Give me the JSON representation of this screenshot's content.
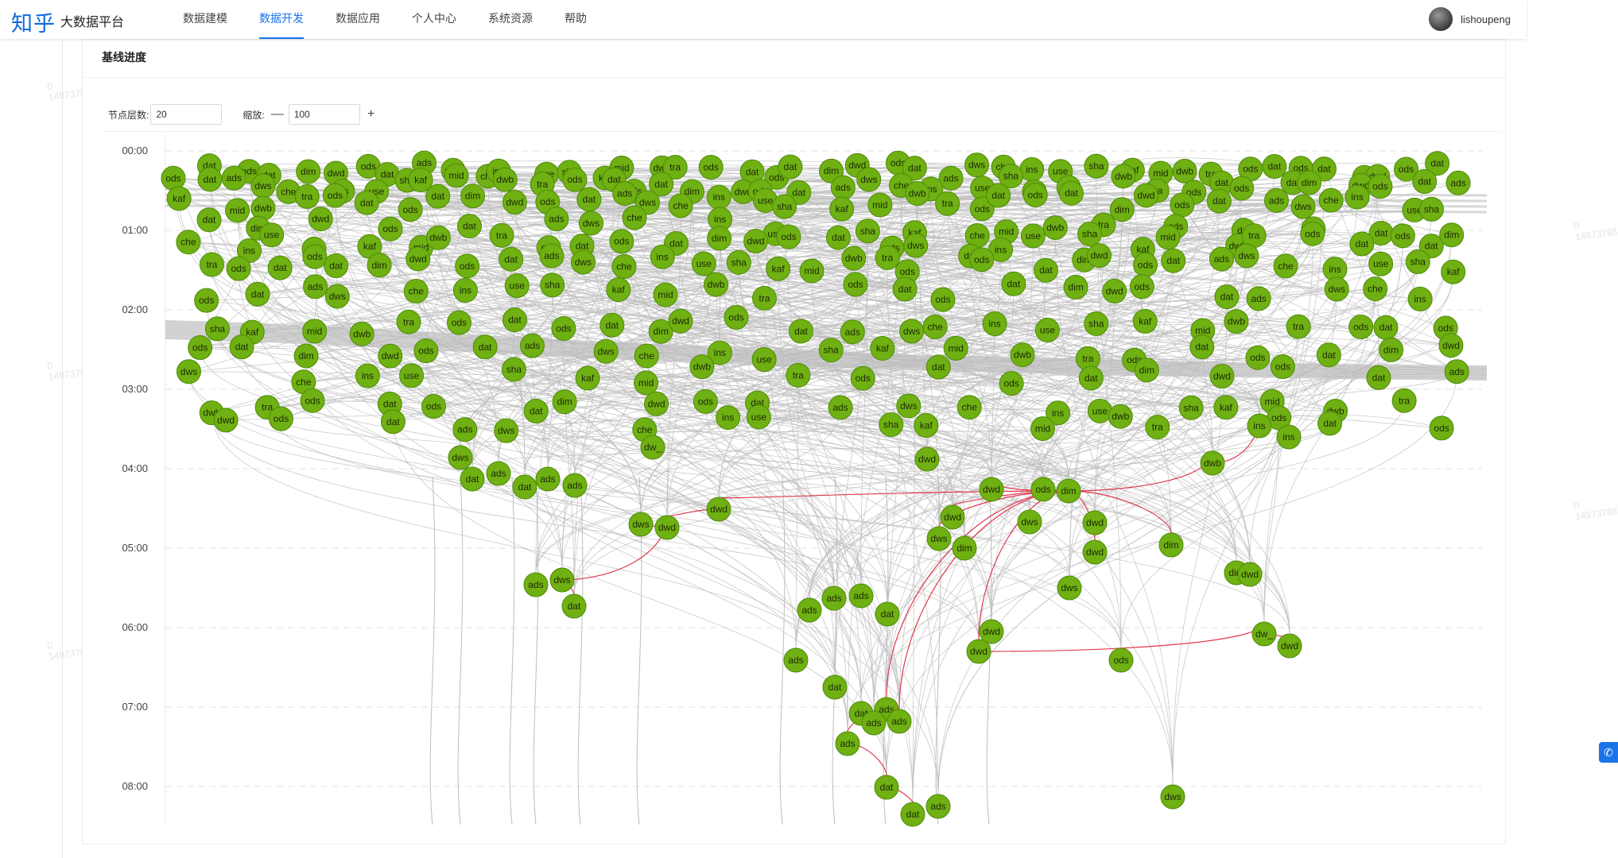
{
  "header": {
    "logo": "知乎",
    "app_title": "大数据平台",
    "nav": [
      {
        "label": "数据建模",
        "active": false
      },
      {
        "label": "数据开发",
        "active": true
      },
      {
        "label": "数据应用",
        "active": false
      },
      {
        "label": "个人中心",
        "active": false
      },
      {
        "label": "系统资源",
        "active": false
      },
      {
        "label": "帮助",
        "active": false
      }
    ],
    "username": "lishoupeng"
  },
  "panel": {
    "title": "基线进度",
    "node_depth_label": "节点层数:",
    "node_depth_value": "20",
    "zoom_label": "缩放:",
    "zoom_minus": "—",
    "zoom_value": "100",
    "zoom_plus": "+"
  },
  "colors": {
    "accent": "#1a73e8",
    "node_fill": "#6fb012",
    "node_stroke": "#4f8a0a",
    "edge": "#bdbdbd",
    "critical_edge": "#e0394d",
    "watermark": "#e4e4e4"
  },
  "watermark_text": "14973788",
  "time_axis": [
    "00:00",
    "01:00",
    "02:00",
    "03:00",
    "04:00",
    "05:00",
    "06:00",
    "07:00",
    "08:00"
  ],
  "graph": {
    "node_label_cycle": [
      "ods",
      "dat",
      "ods",
      "dat",
      "dim",
      "dwd",
      "ods",
      "dat",
      "ads",
      "dws",
      "che",
      "ins",
      "use",
      "sha",
      "kaf",
      "mid",
      "dwb",
      "tra"
    ],
    "dense_bands": [
      {
        "hour": 0.25,
        "count": 44
      },
      {
        "hour": 0.42,
        "count": 38
      },
      {
        "hour": 0.64,
        "count": 36
      },
      {
        "hour": 0.95,
        "count": 20
      },
      {
        "hour": 1.15,
        "count": 30
      },
      {
        "hour": 1.42,
        "count": 34
      },
      {
        "hour": 1.78,
        "count": 24
      },
      {
        "hour": 2.2,
        "count": 26
      },
      {
        "hour": 2.55,
        "count": 22
      },
      {
        "hour": 2.82,
        "count": 18
      },
      {
        "hour": 3.2,
        "count": 20
      },
      {
        "hour": 3.45,
        "count": 16
      }
    ],
    "lower_nodes": [
      {
        "id": "n1",
        "label": "dws",
        "hour": 3.78
      },
      {
        "id": "n2",
        "label": "dat",
        "hour": 4.05
      },
      {
        "id": "n3",
        "label": "ads",
        "hour": 3.98
      },
      {
        "id": "n4",
        "label": "dat",
        "hour": 4.15
      },
      {
        "id": "n5",
        "label": "ads",
        "hour": 4.05
      },
      {
        "id": "n6",
        "label": "ads",
        "hour": 4.13
      },
      {
        "id": "n7",
        "label": "dw_",
        "hour": 3.65
      },
      {
        "id": "n8",
        "label": "dwd",
        "hour": 4.43
      },
      {
        "id": "n9",
        "label": "dws",
        "hour": 4.62
      },
      {
        "id": "n10",
        "label": "dwd",
        "hour": 4.66
      },
      {
        "id": "n11",
        "label": "ads",
        "hour": 5.38
      },
      {
        "id": "n12",
        "label": "dws",
        "hour": 5.32
      },
      {
        "id": "n13",
        "label": "dat",
        "hour": 5.65
      },
      {
        "id": "n14",
        "label": "dwd",
        "hour": 3.8
      },
      {
        "id": "n15",
        "label": "dwd",
        "hour": 4.18
      },
      {
        "id": "n16",
        "label": "ods",
        "hour": 4.18
      },
      {
        "id": "n17",
        "label": "dim",
        "hour": 4.2
      },
      {
        "id": "n18",
        "label": "dwd",
        "hour": 4.53
      },
      {
        "id": "n19",
        "label": "dws",
        "hour": 4.59
      },
      {
        "id": "n20",
        "label": "dwd",
        "hour": 4.6
      },
      {
        "id": "n21",
        "label": "dws",
        "hour": 4.8
      },
      {
        "id": "n22",
        "label": "dim",
        "hour": 4.92
      },
      {
        "id": "n23",
        "label": "dim",
        "hour": 4.88
      },
      {
        "id": "n24",
        "label": "dwd",
        "hour": 4.97
      },
      {
        "id": "n25",
        "label": "dim",
        "hour": 5.23
      },
      {
        "id": "n26",
        "label": "dwd",
        "hour": 5.25
      },
      {
        "id": "n27",
        "label": "dws",
        "hour": 5.42
      },
      {
        "id": "n28",
        "label": "dat",
        "hour": 5.75
      },
      {
        "id": "n29",
        "label": "ads",
        "hour": 5.7
      },
      {
        "id": "n30",
        "label": "ads",
        "hour": 5.55
      },
      {
        "id": "n31",
        "label": "ads",
        "hour": 5.52
      },
      {
        "id": "n32",
        "label": "dwd",
        "hour": 5.97
      },
      {
        "id": "n33",
        "label": "dwd",
        "hour": 6.22
      },
      {
        "id": "n34",
        "label": "ods",
        "hour": 6.33
      },
      {
        "id": "n35",
        "label": "ads",
        "hour": 6.33
      },
      {
        "id": "n36",
        "label": "dat",
        "hour": 6.67
      },
      {
        "id": "n37",
        "label": "dat",
        "hour": 7.0
      },
      {
        "id": "n38",
        "label": "ads",
        "hour": 6.95
      },
      {
        "id": "n39",
        "label": "ads",
        "hour": 7.12
      },
      {
        "id": "n40",
        "label": "ads",
        "hour": 7.1
      },
      {
        "id": "n41",
        "label": "ads",
        "hour": 7.38
      },
      {
        "id": "n42",
        "label": "dat",
        "hour": 7.93
      },
      {
        "id": "n43",
        "label": "ads",
        "hour": 8.17
      },
      {
        "id": "n44",
        "label": "dat",
        "hour": 8.27
      },
      {
        "id": "n45",
        "label": "dws",
        "hour": 8.05
      },
      {
        "id": "n46",
        "label": "dwb",
        "hour": 3.85
      },
      {
        "id": "n47",
        "label": "ins",
        "hour": 3.38
      },
      {
        "id": "n48",
        "label": "ins",
        "hour": 3.52
      },
      {
        "id": "n49",
        "label": "dw_",
        "hour": 6.0
      },
      {
        "id": "n50",
        "label": "dwd",
        "hour": 6.15
      }
    ],
    "critical_path": [
      [
        "n17",
        "n16"
      ],
      [
        "n17",
        "n15"
      ],
      [
        "n17",
        "n18"
      ],
      [
        "n17",
        "n8"
      ],
      [
        "n8",
        "n10"
      ],
      [
        "n10",
        "n9"
      ],
      [
        "n17",
        "n21"
      ],
      [
        "n17",
        "n38"
      ],
      [
        "n17",
        "n40"
      ],
      [
        "n38",
        "n41"
      ],
      [
        "n41",
        "n42"
      ],
      [
        "n42",
        "n44"
      ],
      [
        "n17",
        "n33"
      ],
      [
        "n33",
        "n49"
      ],
      [
        "n49",
        "n50"
      ],
      [
        "n17",
        "n46"
      ],
      [
        "n46",
        "n47"
      ],
      [
        "n12",
        "n10"
      ],
      [
        "n12",
        "n13"
      ],
      [
        "n17",
        "n23"
      ],
      [
        "n17",
        "n24"
      ]
    ]
  }
}
